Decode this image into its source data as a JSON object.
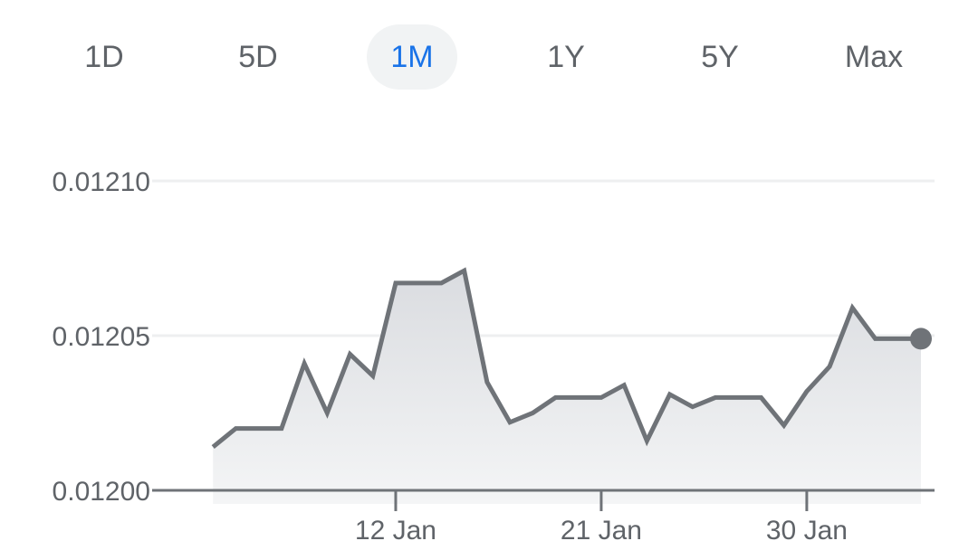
{
  "range_tabs": [
    {
      "label": "1D"
    },
    {
      "label": "5D"
    },
    {
      "label": "1M"
    },
    {
      "label": "1Y"
    },
    {
      "label": "5Y"
    },
    {
      "label": "Max"
    }
  ],
  "active_tab": 2,
  "colors": {
    "line": "#6f7378",
    "active_tab_text": "#1a73e8",
    "active_tab_bg": "#f1f3f4",
    "text": "#5f6368"
  },
  "chart_data": {
    "type": "area",
    "y_ticks": [
      {
        "value": 0.0121,
        "label": "0.01210"
      },
      {
        "value": 0.01205,
        "label": "0.01205"
      },
      {
        "value": 0.012,
        "label": "0.01200"
      }
    ],
    "ylim": [
      0.012,
      0.0121
    ],
    "x_ticks": [
      {
        "day": 12,
        "label": "12 Jan"
      },
      {
        "day": 21,
        "label": "21 Jan"
      },
      {
        "day": 30,
        "label": "30 Jan"
      }
    ],
    "xlim": [
      3,
      35
    ],
    "grid": true,
    "x": [
      4,
      5,
      6,
      7,
      8,
      9,
      10,
      11,
      12,
      13,
      14,
      15,
      16,
      17,
      18,
      19,
      20,
      21,
      22,
      23,
      24,
      25,
      26,
      27,
      28,
      29,
      30,
      31,
      32,
      33,
      34,
      35
    ],
    "values": [
      0.012014,
      0.01202,
      0.01202,
      0.01202,
      0.012041,
      0.012025,
      0.012044,
      0.012037,
      0.012067,
      0.012067,
      0.012067,
      0.012071,
      0.012035,
      0.012022,
      0.012025,
      0.01203,
      0.01203,
      0.01203,
      0.012034,
      0.012016,
      0.012031,
      0.012027,
      0.01203,
      0.01203,
      0.01203,
      0.012021,
      0.012032,
      0.01204,
      0.012059,
      0.012049,
      0.012049,
      0.012049
    ]
  }
}
